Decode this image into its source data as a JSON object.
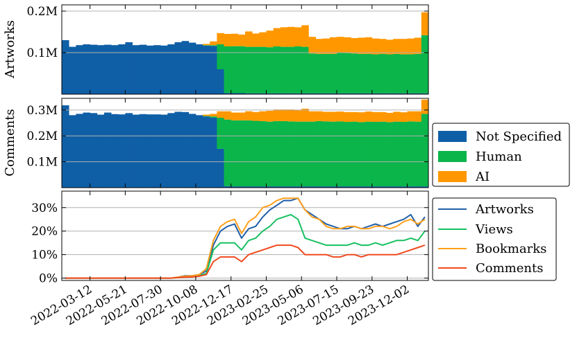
{
  "colors": {
    "not_specified": "#0f5fa6",
    "human": "#0bb54a",
    "ai": "#ff9800",
    "artworks_line": "#1f5fa8",
    "views_line": "#16c060",
    "bookmarks_line": "#ff9f1a",
    "comments_line": "#f04a1e",
    "grid": "#b0b0b0"
  },
  "chart_data": [
    {
      "type": "bar",
      "stacked": true,
      "ylabel": "Artworks",
      "yticks": [
        "0.1M",
        "0.2M"
      ],
      "ytick_values": [
        100000,
        200000
      ],
      "ylim": [
        0,
        215000
      ],
      "grid": true,
      "x": [
        "2022-01-22",
        "2022-02-05",
        "2022-02-19",
        "2022-03-05",
        "2022-03-19",
        "2022-04-02",
        "2022-04-16",
        "2022-04-30",
        "2022-05-14",
        "2022-05-28",
        "2022-06-11",
        "2022-06-25",
        "2022-07-09",
        "2022-07-23",
        "2022-08-06",
        "2022-08-20",
        "2022-09-03",
        "2022-09-17",
        "2022-10-01",
        "2022-10-15",
        "2022-10-29",
        "2022-11-12",
        "2022-11-26",
        "2022-12-10",
        "2022-12-24",
        "2023-01-07",
        "2023-01-21",
        "2023-02-04",
        "2023-02-18",
        "2023-03-04",
        "2023-03-18",
        "2023-04-01",
        "2023-04-15",
        "2023-04-29",
        "2023-05-13",
        "2023-05-27",
        "2023-06-10",
        "2023-06-24",
        "2023-07-08",
        "2023-07-22",
        "2023-08-05",
        "2023-08-19",
        "2023-09-02",
        "2023-09-16",
        "2023-09-30",
        "2023-10-14",
        "2023-10-28",
        "2023-11-11",
        "2023-11-25",
        "2023-12-09",
        "2023-12-23",
        "2024-01-06"
      ],
      "series": [
        {
          "name": "Not Specified",
          "values": [
            130000,
            114000,
            118000,
            120000,
            119000,
            118000,
            119000,
            118000,
            120000,
            125000,
            118000,
            119000,
            117000,
            118000,
            117000,
            120000,
            125000,
            128000,
            124000,
            120000,
            117000,
            116000,
            60000,
            3000,
            2500,
            2500,
            2000,
            2000,
            2000,
            2000,
            2000,
            2000,
            2000,
            2000,
            2000,
            2000,
            2000,
            2000,
            2000,
            2000,
            2000,
            2000,
            2000,
            2000,
            2000,
            2000,
            2000,
            2000,
            2000,
            2000,
            2000,
            2000
          ]
        },
        {
          "name": "Human",
          "values": [
            0,
            0,
            0,
            0,
            0,
            0,
            0,
            0,
            0,
            0,
            0,
            0,
            0,
            0,
            0,
            0,
            0,
            0,
            0,
            0,
            1000,
            2000,
            60000,
            112000,
            113000,
            113000,
            112000,
            112000,
            112000,
            111000,
            113000,
            112000,
            112000,
            113000,
            112000,
            96000,
            95000,
            95000,
            95000,
            98000,
            97000,
            96000,
            95000,
            95000,
            94000,
            95000,
            94000,
            95000,
            94000,
            94000,
            95000,
            140000
          ]
        },
        {
          "name": "AI",
          "values": [
            0,
            0,
            0,
            0,
            0,
            0,
            0,
            0,
            0,
            0,
            0,
            0,
            0,
            0,
            0,
            0,
            0,
            0,
            0,
            0,
            3000,
            9000,
            27000,
            30000,
            30000,
            28000,
            37000,
            32000,
            35000,
            40000,
            44000,
            47000,
            48000,
            46000,
            52000,
            40000,
            36000,
            37000,
            40000,
            38000,
            38000,
            37000,
            39000,
            40000,
            38000,
            36000,
            35000,
            36000,
            37000,
            38000,
            39000,
            55000
          ]
        }
      ]
    },
    {
      "type": "bar",
      "stacked": true,
      "ylabel": "Comments",
      "yticks": [
        "0.1M",
        "0.2M",
        "0.3M"
      ],
      "ytick_values": [
        100000,
        200000,
        300000
      ],
      "ylim": [
        0,
        345000
      ],
      "grid": true,
      "x": [
        "2022-01-22",
        "2022-02-05",
        "2022-02-19",
        "2022-03-05",
        "2022-03-19",
        "2022-04-02",
        "2022-04-16",
        "2022-04-30",
        "2022-05-14",
        "2022-05-28",
        "2022-06-11",
        "2022-06-25",
        "2022-07-09",
        "2022-07-23",
        "2022-08-06",
        "2022-08-20",
        "2022-09-03",
        "2022-09-17",
        "2022-10-01",
        "2022-10-15",
        "2022-10-29",
        "2022-11-12",
        "2022-11-26",
        "2022-12-10",
        "2022-12-24",
        "2023-01-07",
        "2023-01-21",
        "2023-02-04",
        "2023-02-18",
        "2023-03-04",
        "2023-03-18",
        "2023-04-01",
        "2023-04-15",
        "2023-04-29",
        "2023-05-13",
        "2023-05-27",
        "2023-06-10",
        "2023-06-24",
        "2023-07-08",
        "2023-07-22",
        "2023-08-05",
        "2023-08-19",
        "2023-09-02",
        "2023-09-16",
        "2023-09-30",
        "2023-10-14",
        "2023-10-28",
        "2023-11-11",
        "2023-11-25",
        "2023-12-09",
        "2023-12-23",
        "2024-01-06"
      ],
      "series": [
        {
          "name": "Not Specified",
          "values": [
            318000,
            280000,
            285000,
            290000,
            288000,
            282000,
            290000,
            284000,
            283000,
            288000,
            282000,
            284000,
            283000,
            283000,
            282000,
            288000,
            293000,
            292000,
            285000,
            280000,
            275000,
            270000,
            150000,
            6000,
            5000,
            5000,
            5000,
            5000,
            5000,
            5000,
            5000,
            5000,
            5000,
            5000,
            5000,
            5000,
            5000,
            5000,
            5000,
            5000,
            5000,
            5000,
            5000,
            5000,
            5000,
            5000,
            5000,
            5000,
            5000,
            5000,
            5000,
            5000
          ]
        },
        {
          "name": "Human",
          "values": [
            0,
            0,
            0,
            0,
            0,
            0,
            0,
            0,
            0,
            0,
            0,
            0,
            0,
            0,
            0,
            0,
            0,
            0,
            0,
            0,
            2000,
            5000,
            120000,
            257000,
            255000,
            255000,
            255000,
            253000,
            252000,
            250000,
            252000,
            252000,
            251000,
            250000,
            250000,
            250000,
            252000,
            251000,
            250000,
            251000,
            249000,
            250000,
            248000,
            250000,
            249000,
            250000,
            248000,
            250000,
            249000,
            251000,
            250000,
            280000
          ]
        },
        {
          "name": "AI",
          "values": [
            0,
            0,
            0,
            0,
            0,
            0,
            0,
            0,
            0,
            0,
            0,
            0,
            0,
            0,
            0,
            0,
            0,
            0,
            0,
            0,
            5000,
            10000,
            25000,
            32000,
            30000,
            30000,
            35000,
            34000,
            38000,
            42000,
            45000,
            45000,
            46000,
            45000,
            50000,
            40000,
            38000,
            37000,
            38000,
            38000,
            38000,
            37000,
            38000,
            39000,
            38000,
            37000,
            36000,
            38000,
            37000,
            39000,
            40000,
            55000
          ]
        }
      ]
    },
    {
      "type": "line",
      "yticks": [
        "0%",
        "10%",
        "20%",
        "30%"
      ],
      "ytick_values": [
        0,
        10,
        20,
        30
      ],
      "ylim": [
        -1,
        37
      ],
      "grid": true,
      "xticks": [
        "2022-03-12",
        "2022-05-21",
        "2022-07-30",
        "2022-10-08",
        "2022-12-17",
        "2023-02-25",
        "2023-05-06",
        "2023-07-15",
        "2023-09-23",
        "2023-12-02"
      ],
      "x": [
        "2022-01-22",
        "2022-02-05",
        "2022-02-19",
        "2022-03-05",
        "2022-03-19",
        "2022-04-02",
        "2022-04-16",
        "2022-04-30",
        "2022-05-14",
        "2022-05-28",
        "2022-06-11",
        "2022-06-25",
        "2022-07-09",
        "2022-07-23",
        "2022-08-06",
        "2022-08-20",
        "2022-09-03",
        "2022-09-17",
        "2022-10-01",
        "2022-10-15",
        "2022-10-29",
        "2022-11-12",
        "2022-11-26",
        "2022-12-10",
        "2022-12-24",
        "2023-01-07",
        "2023-01-21",
        "2023-02-04",
        "2023-02-18",
        "2023-03-04",
        "2023-03-18",
        "2023-04-01",
        "2023-04-15",
        "2023-04-29",
        "2023-05-13",
        "2023-05-27",
        "2023-06-10",
        "2023-06-24",
        "2023-07-08",
        "2023-07-22",
        "2023-08-05",
        "2023-08-19",
        "2023-09-02",
        "2023-09-16",
        "2023-09-30",
        "2023-10-14",
        "2023-10-28",
        "2023-11-11",
        "2023-11-25",
        "2023-12-09",
        "2023-12-23",
        "2024-01-06"
      ],
      "series": [
        {
          "name": "Artworks",
          "values": [
            0,
            0,
            0,
            0,
            0,
            0,
            0,
            0,
            0,
            0,
            0,
            0,
            0,
            0,
            0,
            0,
            0.4,
            1,
            1,
            1.5,
            3,
            14,
            20,
            22,
            23,
            17,
            21,
            22,
            26,
            29,
            31,
            33,
            33,
            34,
            29,
            27,
            25,
            23,
            22,
            21,
            21,
            22,
            21,
            22,
            23,
            22,
            23,
            24,
            25,
            27,
            22,
            26
          ]
        },
        {
          "name": "Views",
          "values": [
            0,
            0,
            0,
            0,
            0,
            0,
            0,
            0,
            0,
            0,
            0,
            0,
            0,
            0,
            0,
            0,
            0.2,
            0.5,
            0.6,
            1,
            2,
            12,
            15,
            15,
            15,
            12,
            16,
            17,
            20,
            22,
            25,
            26,
            27,
            25,
            17,
            16,
            15,
            14,
            14,
            14,
            14,
            15,
            14,
            14,
            15,
            14,
            15,
            16,
            16,
            17,
            16,
            20
          ]
        },
        {
          "name": "Bookmarks",
          "values": [
            0,
            0,
            0,
            0,
            0,
            0,
            0,
            0,
            0,
            0,
            0,
            0,
            0,
            0,
            0,
            0,
            0.4,
            0.8,
            1,
            1.5,
            4,
            16,
            22,
            24,
            25,
            19,
            24,
            26,
            30,
            31,
            33,
            34,
            34,
            34,
            29,
            26,
            25,
            22,
            21,
            21,
            22,
            22,
            21,
            21,
            22,
            22,
            21,
            22,
            24,
            25,
            23,
            25
          ]
        },
        {
          "name": "Comments",
          "values": [
            0,
            0,
            0,
            0,
            0,
            0,
            0,
            0,
            0,
            0,
            0,
            0,
            0,
            0,
            0,
            0,
            0.2,
            0.4,
            0.5,
            0.8,
            1.5,
            7,
            9,
            9,
            9,
            7,
            10,
            11,
            12,
            13,
            14,
            14,
            14,
            13,
            10,
            10,
            10,
            10,
            9,
            9,
            10,
            10,
            9,
            10,
            10,
            10,
            10,
            10,
            11,
            12,
            13,
            14
          ]
        }
      ]
    }
  ],
  "legend_bars": [
    "Not Specified",
    "Human",
    "AI"
  ],
  "legend_lines": [
    "Artworks",
    "Views",
    "Bookmarks",
    "Comments"
  ]
}
